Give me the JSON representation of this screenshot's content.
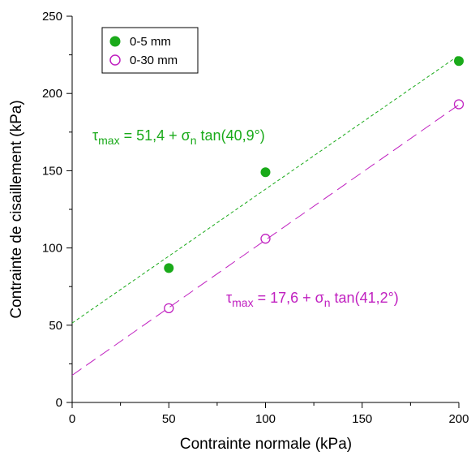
{
  "chart_data": {
    "type": "scatter",
    "title": "",
    "xlabel": "Contrainte normale (kPa)",
    "ylabel": "Contrainte de cisaillement (kPa)",
    "xlim": [
      0,
      200
    ],
    "ylim": [
      0,
      250
    ],
    "x_ticks": [
      0,
      50,
      100,
      150,
      200
    ],
    "x_tick_labels": [
      "0",
      "50",
      "100",
      "150",
      "200"
    ],
    "y_ticks": [
      0,
      50,
      100,
      150,
      200,
      250
    ],
    "y_tick_labels": [
      "0",
      "50",
      "100",
      "150",
      "200",
      "250"
    ],
    "grid": false,
    "legend_position": "top-left",
    "series": [
      {
        "name": "0-5 mm",
        "marker": "filled-circle",
        "color": "#1aaa1a",
        "x": [
          50,
          100,
          200
        ],
        "y": [
          87,
          149,
          221
        ],
        "fit": {
          "intercept": 51.4,
          "angle_deg": 40.9,
          "line_style": "short-dash",
          "equation": {
            "symbol": "τ",
            "sub": "max",
            "mid": " = 51,4 + σ",
            "sub2": "n",
            "tail": " tan(40,9°)"
          }
        }
      },
      {
        "name": "0-30 mm",
        "marker": "open-circle",
        "color": "#c020c0",
        "x": [
          50,
          100,
          200
        ],
        "y": [
          61,
          106,
          193
        ],
        "fit": {
          "intercept": 17.6,
          "angle_deg": 41.2,
          "line_style": "long-dash",
          "equation": {
            "symbol": "τ",
            "sub": "max",
            "mid": " = 17,6 + σ",
            "sub2": "n",
            "tail": " tan(41,2°)"
          }
        }
      }
    ]
  }
}
